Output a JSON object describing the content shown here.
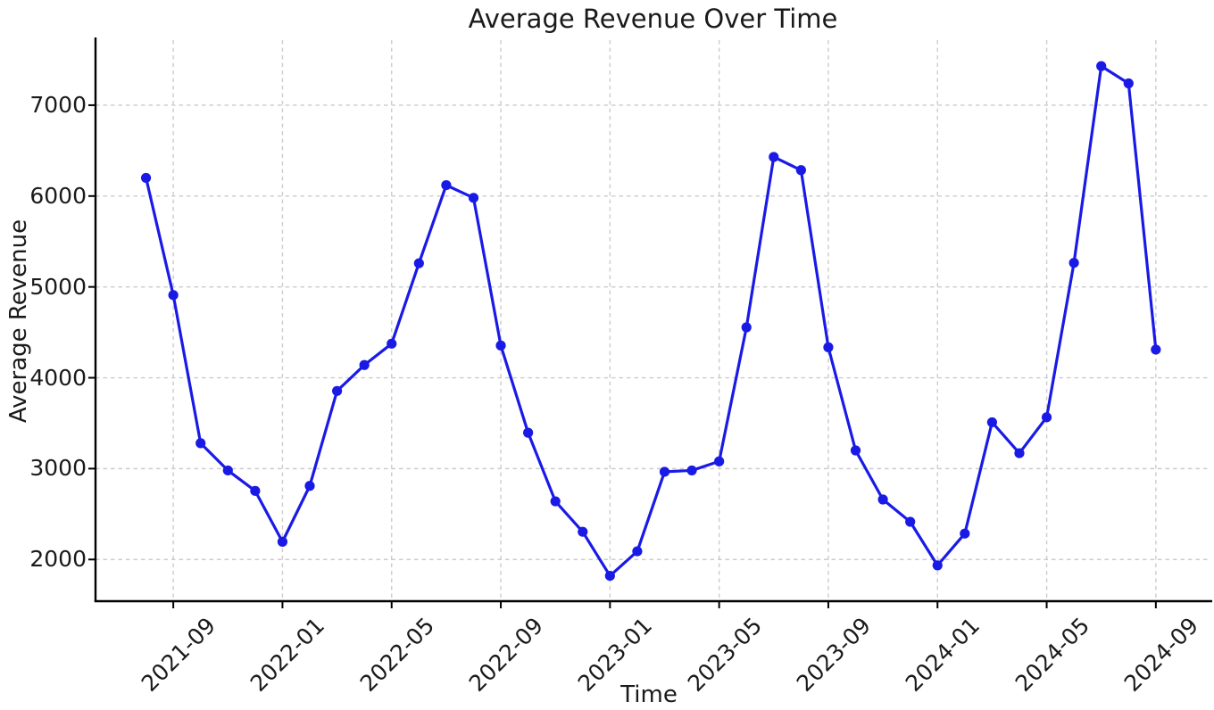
{
  "chart_data": {
    "type": "line",
    "title": "Average Revenue Over Time",
    "xlabel": "Time",
    "ylabel": "Average Revenue",
    "x": [
      "2021-08",
      "2021-09",
      "2021-10",
      "2021-11",
      "2021-12",
      "2022-01",
      "2022-02",
      "2022-03",
      "2022-04",
      "2022-05",
      "2022-06",
      "2022-07",
      "2022-08",
      "2022-09",
      "2022-10",
      "2022-11",
      "2022-12",
      "2023-01",
      "2023-02",
      "2023-03",
      "2023-04",
      "2023-05",
      "2023-06",
      "2023-07",
      "2023-08",
      "2023-09",
      "2023-10",
      "2023-11",
      "2023-12",
      "2024-01",
      "2024-02",
      "2024-03",
      "2024-04",
      "2024-05",
      "2024-06",
      "2024-07",
      "2024-08",
      "2024-09"
    ],
    "values": [
      6200,
      4910,
      3280,
      2980,
      2755,
      2195,
      2810,
      3855,
      4140,
      4375,
      5260,
      6120,
      5980,
      4355,
      3395,
      2640,
      2305,
      1820,
      2090,
      2965,
      2980,
      3080,
      4555,
      6430,
      6285,
      4335,
      3200,
      2660,
      2415,
      1935,
      2285,
      3510,
      3170,
      3565,
      5265,
      7430,
      7240,
      4310
    ],
    "x_tick_labels": [
      "2021-09",
      "2022-01",
      "2022-05",
      "2022-09",
      "2023-01",
      "2023-05",
      "2023-09",
      "2024-01",
      "2024-05",
      "2024-09"
    ],
    "y_ticks": [
      2000,
      3000,
      4000,
      5000,
      6000,
      7000
    ],
    "ylim": [
      1541,
      7716
    ],
    "xlim_index": [
      -1.85,
      39.0
    ],
    "grid": true,
    "legend": false,
    "line_color": "#1a1ae6",
    "grid_color": "#cccccc",
    "axis_color": "#000000",
    "text_color": "#1a1a1a",
    "marker": "o"
  }
}
